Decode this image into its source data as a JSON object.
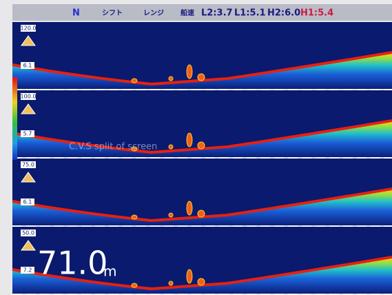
{
  "status_bar": {
    "mode": "N",
    "shift_label": "シフト",
    "range_label": "レンジ",
    "speed_label": "船速",
    "readouts": [
      "L2:3.7",
      "L1:5.1",
      "H2:6.0",
      "H1:5.4"
    ]
  },
  "panels": [
    {
      "range": "120.0",
      "marker": "6.1"
    },
    {
      "range": "100.0",
      "marker": "5.7"
    },
    {
      "range": "75.0",
      "marker": "6.1"
    },
    {
      "range": "50.0",
      "marker": "7.2"
    }
  ],
  "overlay_caption": "C.V.S split of screen",
  "depth_readout": {
    "value": "71.0",
    "unit": "m"
  }
}
